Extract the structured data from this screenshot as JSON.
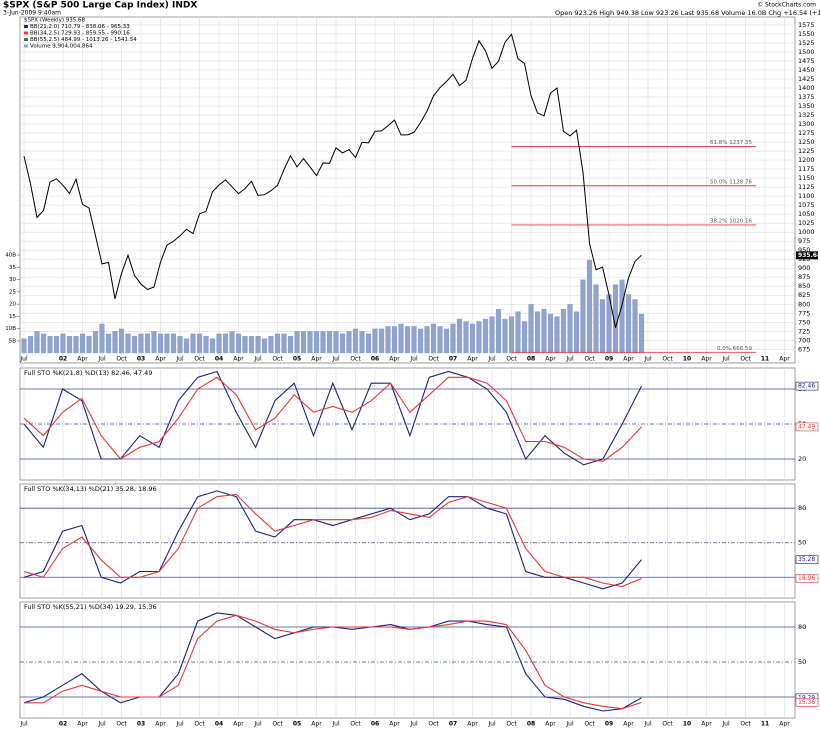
{
  "chart_data": [
    {
      "type": "line",
      "title": "$SPX (S&P 500 Large Cap Index) INDX",
      "subtitle": "3-Jun-2009 9:40am",
      "quote": "Open 923.26   High 949.38   Low 923.26   Last 935.68   Volume 16.0B   Chg +16.54 (+1.80%)",
      "credit": "© StockCharts.com",
      "legend_extra": [
        "BB(21,2.0) 710.79 - 838.06 - 965.33",
        "BB(34,2.5) 729.93 - 859.55 - 990.16",
        "BB(55,2.5) 484.99 - 1013.26 - 1541.54"
      ],
      "x_tick_labels": [
        "Jul",
        "02",
        "Apr",
        "Jul",
        "Oct",
        "03",
        "Apr",
        "Jul",
        "Oct",
        "04",
        "Apr",
        "Jul",
        "Oct",
        "05",
        "Apr",
        "Jul",
        "Oct",
        "06",
        "Apr",
        "Jul",
        "Oct",
        "07",
        "Apr",
        "Jul",
        "Oct",
        "08",
        "Apr",
        "Jul",
        "Oct",
        "09",
        "Apr",
        "Jul",
        "Oct",
        "10",
        "Apr",
        "Jul",
        "Oct",
        "11",
        "Apr"
      ],
      "series": [
        {
          "name": "$SPX (Weekly) 935.68",
          "color": "#000000",
          "values": [
            1211,
            1134,
            1041,
            1060,
            1139,
            1148,
            1130,
            1107,
            1147,
            1077,
            1067,
            990,
            912,
            916,
            815,
            886,
            936,
            880,
            856,
            841,
            848,
            917,
            964,
            975,
            990,
            1008,
            996,
            1051,
            1058,
            1112,
            1131,
            1145,
            1126,
            1107,
            1121,
            1141,
            1102,
            1104,
            1115,
            1130,
            1174,
            1212,
            1181,
            1204,
            1181,
            1157,
            1192,
            1191,
            1234,
            1220,
            1229,
            1207,
            1249,
            1248,
            1280,
            1281,
            1295,
            1311,
            1270,
            1270,
            1277,
            1304,
            1336,
            1378,
            1401,
            1418,
            1438,
            1407,
            1421,
            1482,
            1531,
            1503,
            1455,
            1474,
            1527,
            1549,
            1481,
            1468,
            1379,
            1331,
            1323,
            1386,
            1400,
            1280,
            1267,
            1283,
            1166,
            969,
            896,
            903,
            826,
            735,
            798,
            873,
            919,
            936
          ]
        },
        {
          "name": "Volume 9,904,004,864",
          "color": "#8fa3cc",
          "axis": "y2",
          "values": [
            6,
            7,
            9,
            8,
            7,
            7,
            8,
            7,
            7,
            8,
            7,
            9,
            12,
            8,
            9,
            10,
            8,
            7,
            8,
            8,
            9,
            8,
            8,
            8,
            7,
            6,
            8,
            8,
            7,
            6,
            8,
            8,
            9,
            8,
            7,
            7,
            7,
            6,
            7,
            8,
            8,
            7,
            9,
            9,
            9,
            9,
            9,
            9,
            9,
            8,
            9,
            10,
            9,
            8,
            10,
            10,
            11,
            11,
            12,
            11,
            11,
            10,
            11,
            12,
            11,
            10,
            12,
            14,
            13,
            12,
            13,
            14,
            15,
            18,
            14,
            15,
            17,
            13,
            20,
            17,
            18,
            16,
            15,
            18,
            20,
            17,
            30,
            38,
            28,
            22,
            24,
            28,
            30,
            24,
            22,
            16
          ]
        }
      ],
      "levels": [
        {
          "value": 1237.35,
          "label": "61.8% 1237.35"
        },
        {
          "value": 1128.76,
          "label": "50.0% 1128.76"
        },
        {
          "value": 1020.16,
          "label": "38.2% 1020.16"
        },
        {
          "value": 666.59,
          "label": "0.0% 666.59"
        }
      ],
      "last": 935.68,
      "ylim": [
        637,
        1597
      ],
      "yticks": [
        675,
        700,
        725,
        750,
        775,
        800,
        825,
        850,
        875,
        900,
        925,
        950,
        975,
        1000,
        1025,
        1050,
        1075,
        1100,
        1125,
        1150,
        1175,
        1200,
        1225,
        1250,
        1275,
        1300,
        1325,
        1350,
        1375,
        1400,
        1425,
        1450,
        1475,
        1500,
        1525,
        1550,
        1575
      ],
      "y2lim": [
        -4,
        137
      ],
      "y2ticks": [
        {
          "value": 5,
          "label": "5B"
        },
        {
          "value": 10,
          "label": "10B"
        },
        15,
        20,
        25,
        30,
        35,
        {
          "value": 40,
          "label": "40B"
        }
      ],
      "grid": true
    },
    {
      "type": "line",
      "title": "Full STO %K(21,8) %D(13) 82.46, 47.49",
      "series": [
        {
          "color": "#1a237e",
          "values": [
            50,
            30,
            80,
            70,
            20,
            20,
            40,
            30,
            70,
            90,
            95,
            60,
            30,
            70,
            85,
            40,
            85,
            45,
            85,
            85,
            40,
            90,
            95,
            90,
            80,
            60,
            20,
            40,
            25,
            15,
            20,
            50,
            82.46
          ]
        },
        {
          "color": "#e53935",
          "values": [
            55,
            40,
            60,
            72,
            40,
            20,
            30,
            35,
            55,
            80,
            90,
            75,
            45,
            55,
            75,
            60,
            65,
            60,
            70,
            85,
            60,
            75,
            90,
            90,
            85,
            70,
            35,
            35,
            30,
            20,
            18,
            30,
            47.49
          ]
        }
      ],
      "ylim": [
        2,
        98
      ],
      "yticks": [
        20,
        50,
        80
      ]
    },
    {
      "type": "line",
      "title": "Full STO %K(34,13) %D(21) 35.28, 18.96",
      "series": [
        {
          "color": "#1a237e",
          "values": [
            20,
            25,
            60,
            65,
            20,
            15,
            25,
            25,
            60,
            90,
            95,
            90,
            60,
            55,
            70,
            70,
            65,
            70,
            75,
            80,
            70,
            75,
            90,
            90,
            80,
            75,
            25,
            20,
            20,
            15,
            10,
            15,
            35.28
          ]
        },
        {
          "color": "#e53935",
          "values": [
            25,
            20,
            45,
            55,
            35,
            20,
            20,
            25,
            45,
            80,
            90,
            92,
            75,
            60,
            65,
            70,
            70,
            70,
            72,
            78,
            75,
            72,
            85,
            90,
            85,
            80,
            45,
            25,
            20,
            20,
            15,
            12,
            18.96
          ]
        }
      ],
      "ylim": [
        2,
        101
      ],
      "yticks": [
        20,
        50,
        80
      ]
    },
    {
      "type": "line",
      "title": "Full STO %K(55,21) %D(34) 19.29, 15.36",
      "series": [
        {
          "color": "#1a237e",
          "values": [
            15,
            20,
            30,
            40,
            25,
            15,
            20,
            20,
            40,
            85,
            92,
            90,
            80,
            70,
            75,
            80,
            80,
            78,
            80,
            82,
            78,
            80,
            85,
            85,
            82,
            80,
            40,
            20,
            18,
            12,
            8,
            10,
            19.29
          ]
        },
        {
          "color": "#e53935",
          "values": [
            15,
            15,
            25,
            30,
            25,
            20,
            20,
            20,
            30,
            70,
            85,
            90,
            85,
            78,
            75,
            78,
            80,
            80,
            80,
            80,
            78,
            80,
            82,
            85,
            85,
            82,
            60,
            30,
            20,
            15,
            12,
            10,
            15.36
          ]
        }
      ],
      "ylim": [
        2,
        101.4
      ],
      "yticks": [
        20,
        50,
        80
      ]
    }
  ]
}
